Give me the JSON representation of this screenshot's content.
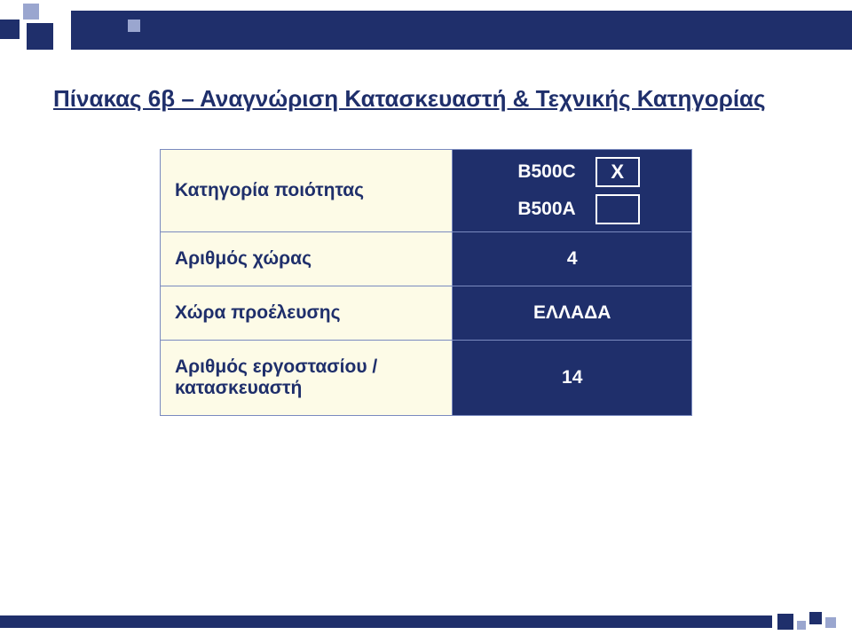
{
  "colors": {
    "brand_navy": "#1f2f6b",
    "brand_light": "#9aa6cf",
    "label_bg": "#fdfbe7",
    "white": "#ffffff"
  },
  "title": "Πίνακας 6β – Αναγνώριση Κατασκευαστή & Τεχνικής Κατηγορίας",
  "table": {
    "rows": [
      {
        "label": "Κατηγορία ποιότητας",
        "quality_options": [
          {
            "code": "B500C",
            "selected_mark": "Χ"
          },
          {
            "code": "B500A",
            "selected_mark": ""
          }
        ]
      },
      {
        "label": "Αριθμός χώρας",
        "value": "4"
      },
      {
        "label": "Χώρα προέλευσης",
        "value": "ΕΛΛΑΔΑ"
      },
      {
        "label": "Αριθμός εργοστασίου / κατασκευαστή",
        "value": "14"
      }
    ]
  }
}
